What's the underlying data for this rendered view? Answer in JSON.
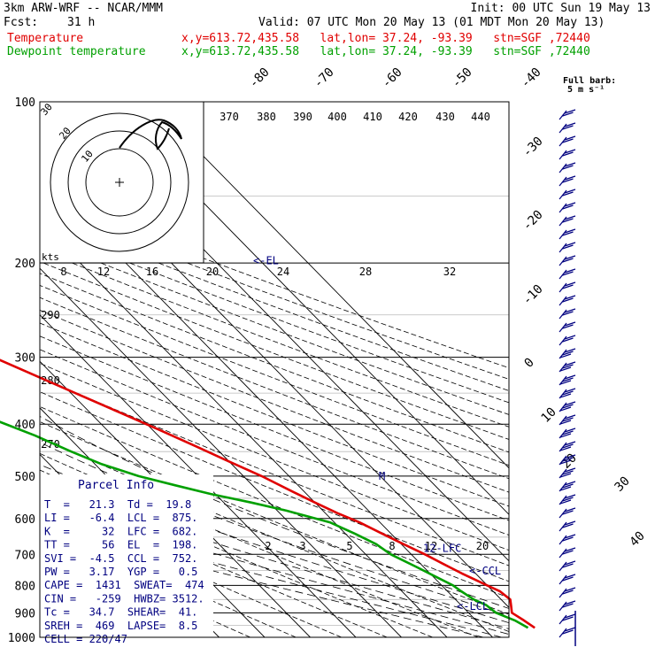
{
  "header": {
    "model": "3km ARW-WRF -- NCAR/MMM",
    "init": "Init: 00 UTC Sun 19 May 13",
    "fcst_label": "Fcst:",
    "fcst_value": "31 h",
    "valid": "Valid: 07 UTC Mon 20 May 13 (01 MDT Mon 20 May 13)",
    "temp_label": "Temperature",
    "dew_label": "Dewpoint temperature",
    "loc": "x,y=613.72,435.58   lat,lon= 37.24, -93.39   stn=SGF ,72440"
  },
  "barb_legend": {
    "title": "Full barb:",
    "value": "5 m s⁻¹"
  },
  "colors": {
    "temperature": "#e00000",
    "dewpoint": "#00a000",
    "annotation": "#000080"
  },
  "chart_data": {
    "type": "line",
    "skew_t": true,
    "ylabel_units": "hPa",
    "pressure_ticks": [
      100,
      200,
      300,
      400,
      500,
      600,
      700,
      800,
      900,
      1000
    ],
    "isotherm_labels": [
      "-80",
      "-70",
      "-60",
      "-50",
      "-40",
      "-30",
      "-20",
      "-10",
      "0",
      "10",
      "20",
      "30",
      "40"
    ],
    "isotherm_values": [
      -80,
      -70,
      -60,
      -50,
      -40,
      -30,
      -20,
      -10,
      0,
      10,
      20,
      30,
      40
    ],
    "theta_labels_top": [
      "370",
      "380",
      "390",
      "400",
      "410",
      "420",
      "430",
      "440"
    ],
    "theta_labels_left": [
      "290",
      "280",
      "270"
    ],
    "mixing_ratio_labels": [
      "2",
      "3",
      "5",
      "8",
      "12",
      "20"
    ],
    "hodograph_speed_labels": [
      "8",
      "12",
      "16",
      "20",
      "24",
      "28",
      "32"
    ],
    "hodograph_ring_labels": [
      "30",
      "20",
      "10"
    ],
    "hodograph_units": "kts",
    "series": [
      {
        "name": "Temperature",
        "pressure": [
          960,
          930,
          900,
          870,
          850,
          820,
          800,
          780,
          760,
          730,
          700,
          670,
          640,
          610,
          585,
          560,
          535,
          500,
          470,
          440,
          410,
          380,
          350,
          320,
          290,
          260,
          235,
          215,
          200,
          185,
          170,
          155,
          140,
          125,
          115,
          108,
          100
        ],
        "temp_c": [
          21.3,
          20.5,
          19.5,
          21.0,
          22.0,
          21.5,
          20.0,
          18.5,
          17.0,
          15.0,
          13.0,
          10.5,
          8.0,
          5.5,
          2.5,
          0.0,
          -2.5,
          -6.0,
          -10.0,
          -14.0,
          -18.5,
          -23.5,
          -29.0,
          -35.0,
          -41.5,
          -48.5,
          -54.5,
          -60.0,
          -63.5,
          -66.0,
          -65.0,
          -63.0,
          -62.5,
          -59.5,
          -57.5,
          -56.0,
          -55.0
        ]
      },
      {
        "name": "Dewpoint",
        "pressure": [
          960,
          930,
          900,
          870,
          850,
          820,
          800,
          770,
          740,
          700,
          670,
          640,
          610,
          580,
          560,
          540,
          520,
          500,
          475,
          450,
          420,
          395,
          375,
          355,
          340,
          320,
          300,
          280,
          260,
          240,
          220,
          200,
          190,
          180,
          170,
          160,
          150,
          140,
          130,
          120,
          110,
          100
        ],
        "temp_c": [
          19.8,
          18.5,
          16.0,
          15.5,
          14.0,
          13.0,
          12.5,
          10.5,
          8.5,
          5.5,
          4.5,
          2.0,
          -1.0,
          -8.0,
          -14.0,
          -21.0,
          -27.0,
          -33.0,
          -38.5,
          -42.5,
          -47.0,
          -52.0,
          -56.5,
          -60.5,
          -61.0,
          -60.5,
          -61.0,
          -62.0,
          -63.5,
          -66.5,
          -70.5,
          -75.0,
          -80.0,
          -82.5,
          -87.5,
          -90.0,
          -88.0,
          -91.0,
          -95.0,
          -95.5,
          -94.5,
          -94.0
        ]
      }
    ],
    "level_markers": [
      {
        "label": "<-EL",
        "pressure": 198
      },
      {
        "label": "12-LFC",
        "pressure": 682
      },
      {
        "label": "<-CCL",
        "pressure": 752
      },
      {
        "label": "<-LCL",
        "pressure": 875
      },
      {
        "label": "M",
        "pressure": 500
      }
    ]
  },
  "parcel_info": {
    "title": "Parcel Info",
    "rows": [
      "T  =   21.3  Td =  19.8",
      "LI =   -6.4  LCL =  875.",
      "K  =     32  LFC =  682.",
      "TT =     56  EL  =  198.",
      "SVI =  -4.5  CCL =  752.",
      "PW =   3.17  YGP =   0.5",
      "CAPE =  1431  SWEAT=  474",
      "CIN =   -259  HWBZ= 3512.",
      "Tc =   34.7  SHEAR=  41.",
      "SREH =  469  LAPSE=  8.5",
      "CELL = 220/47"
    ]
  }
}
